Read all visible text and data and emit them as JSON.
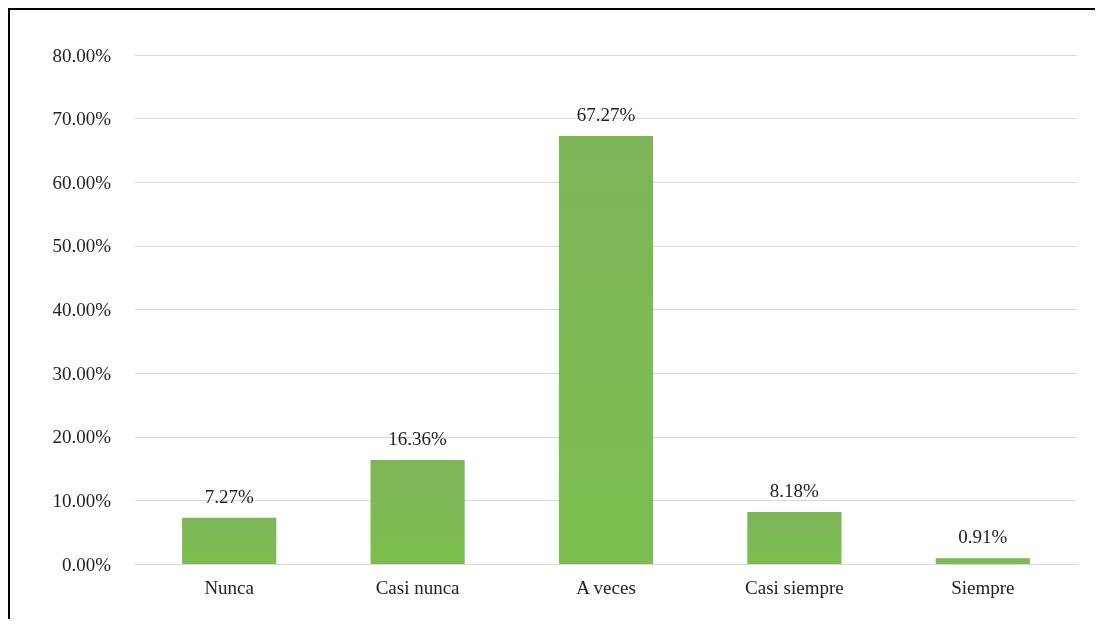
{
  "chart_data": {
    "type": "bar",
    "categories": [
      "Nunca",
      "Casi nunca",
      "A veces",
      "Casi siempre",
      "Siempre"
    ],
    "values": [
      7.27,
      16.36,
      67.27,
      8.18,
      0.91
    ],
    "value_labels": [
      "7.27%",
      "16.36%",
      "67.27%",
      "8.18%",
      "0.91%"
    ],
    "color": "#70ad47",
    "ylim": [
      0,
      80
    ],
    "yticks": [
      {
        "value": 0,
        "label": "0.00%"
      },
      {
        "value": 10,
        "label": "10.00%"
      },
      {
        "value": 20,
        "label": "20.00%"
      },
      {
        "value": 30,
        "label": "30.00%"
      },
      {
        "value": 40,
        "label": "40.00%"
      },
      {
        "value": 50,
        "label": "50.00%"
      },
      {
        "value": 60,
        "label": "60.00%"
      },
      {
        "value": 70,
        "label": "70.00%"
      },
      {
        "value": 80,
        "label": "80.00%"
      }
    ],
    "grid": "y"
  }
}
